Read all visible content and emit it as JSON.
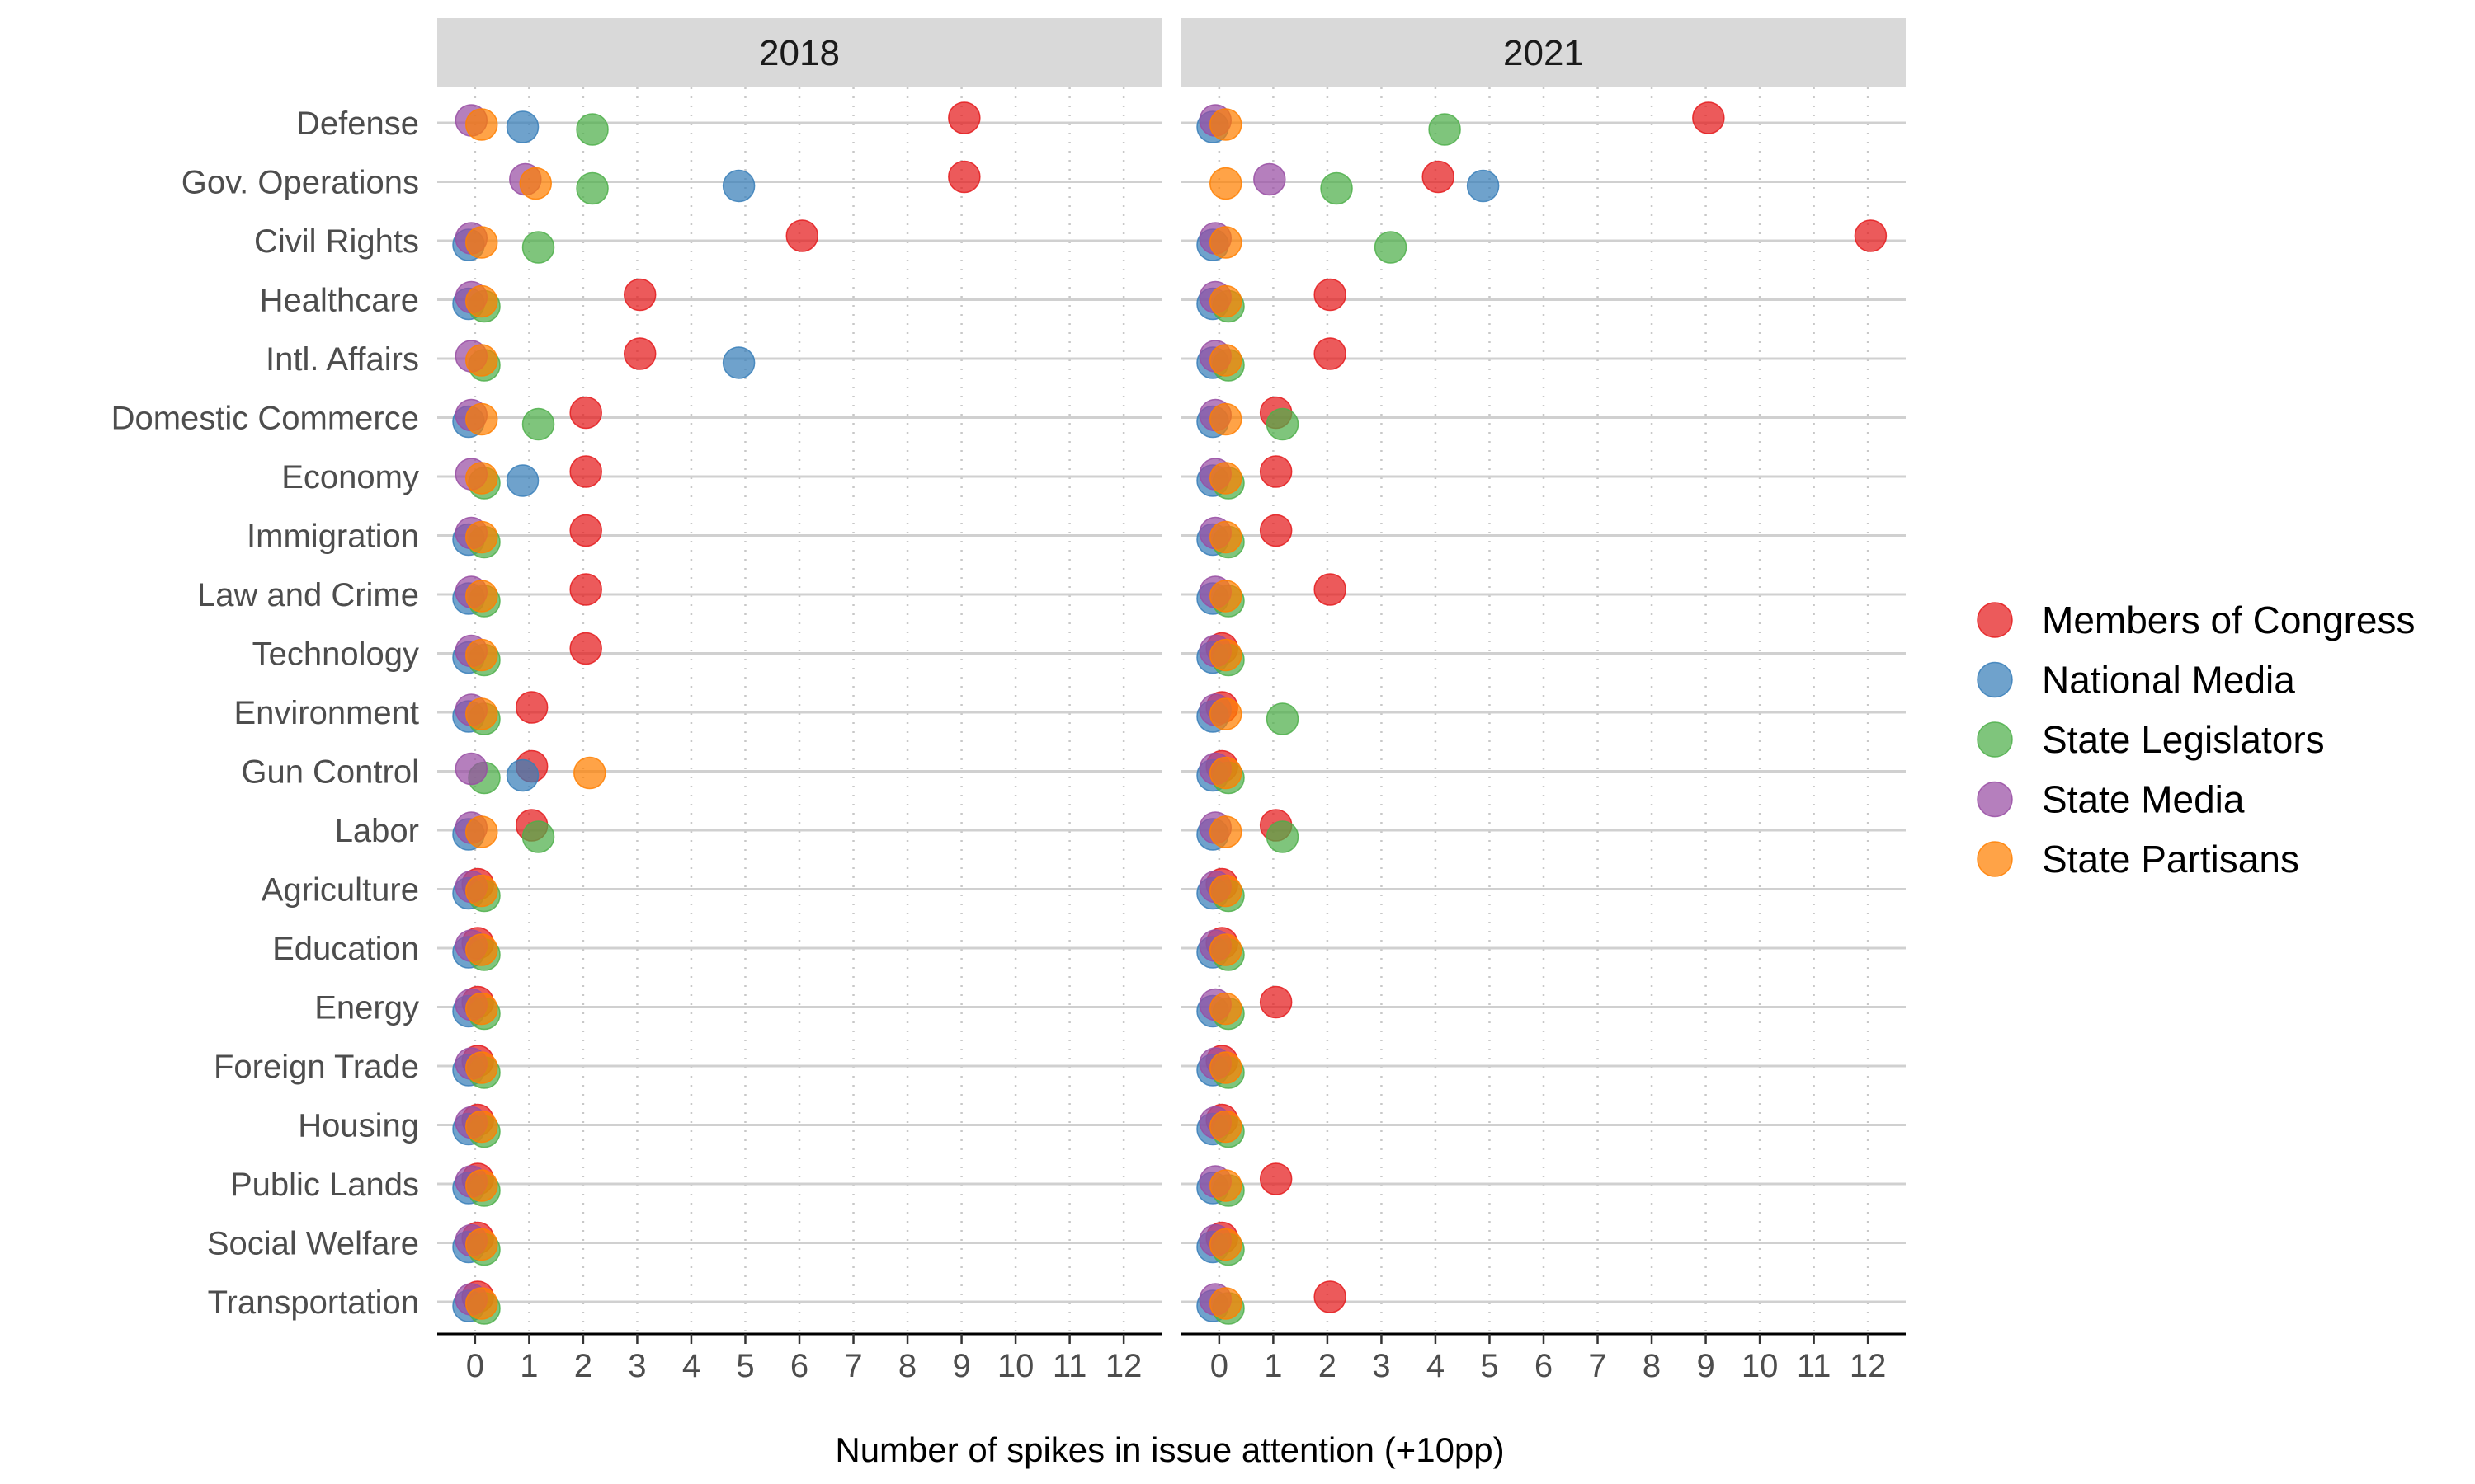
{
  "chart_data": {
    "type": "scatter",
    "xlabel": "Number of spikes in issue attention (+10pp)",
    "ylabel": "",
    "xlim": [
      -0.7,
      12.7
    ],
    "xticks": [
      0,
      1,
      2,
      3,
      4,
      5,
      6,
      7,
      8,
      9,
      10,
      11,
      12
    ],
    "grid": true,
    "legend_position": "right",
    "categories": [
      "Defense",
      "Gov. Operations",
      "Civil Rights",
      "Healthcare",
      "Intl. Affairs",
      "Domestic Commerce",
      "Economy",
      "Immigration",
      "Law and Crime",
      "Technology",
      "Environment",
      "Gun Control",
      "Labor",
      "Agriculture",
      "Education",
      "Energy",
      "Foreign Trade",
      "Housing",
      "Public Lands",
      "Social Welfare",
      "Transportation"
    ],
    "series": [
      {
        "name": "Members of Congress",
        "color": "#E41A1C"
      },
      {
        "name": "National Media",
        "color": "#377EB8"
      },
      {
        "name": "State Legislators",
        "color": "#4DAF4A"
      },
      {
        "name": "State Media",
        "color": "#984EA3"
      },
      {
        "name": "State Partisans",
        "color": "#FF7F00"
      }
    ],
    "panels": [
      {
        "label": "2018",
        "values": {
          "Members of Congress": [
            9,
            9,
            6,
            3,
            3,
            2,
            2,
            2,
            2,
            2,
            1,
            1,
            1,
            0,
            0,
            0,
            0,
            0,
            0,
            0,
            0
          ],
          "National Media": [
            1,
            5,
            0,
            0,
            5,
            0,
            1,
            0,
            0,
            0,
            0,
            1,
            0,
            0,
            0,
            0,
            0,
            0,
            0,
            0,
            0
          ],
          "State Legislators": [
            2,
            2,
            1,
            0,
            0,
            1,
            0,
            0,
            0,
            0,
            0,
            0,
            1,
            0,
            0,
            0,
            0,
            0,
            0,
            0,
            0
          ],
          "State Media": [
            0,
            1,
            0,
            0,
            0,
            0,
            0,
            0,
            0,
            0,
            0,
            0,
            0,
            0,
            0,
            0,
            0,
            0,
            0,
            0,
            0
          ],
          "State Partisans": [
            0,
            1,
            0,
            0,
            0,
            0,
            0,
            0,
            0,
            0,
            0,
            2,
            0,
            0,
            0,
            0,
            0,
            0,
            0,
            0,
            0
          ]
        }
      },
      {
        "label": "2021",
        "values": {
          "Members of Congress": [
            9,
            4,
            12,
            2,
            2,
            1,
            1,
            1,
            2,
            0,
            0,
            0,
            1,
            0,
            0,
            1,
            0,
            0,
            1,
            0,
            2
          ],
          "National Media": [
            0,
            5,
            0,
            0,
            0,
            0,
            0,
            0,
            0,
            0,
            0,
            0,
            0,
            0,
            0,
            0,
            0,
            0,
            0,
            0,
            0
          ],
          "State Legislators": [
            4,
            2,
            3,
            0,
            0,
            1,
            0,
            0,
            0,
            0,
            1,
            0,
            1,
            0,
            0,
            0,
            0,
            0,
            0,
            0,
            0
          ],
          "State Media": [
            0,
            1,
            0,
            0,
            0,
            0,
            0,
            0,
            0,
            0,
            0,
            0,
            0,
            0,
            0,
            0,
            0,
            0,
            0,
            0,
            0
          ],
          "State Partisans": [
            0,
            0,
            0,
            0,
            0,
            0,
            0,
            0,
            0,
            0,
            0,
            0,
            0,
            0,
            0,
            0,
            0,
            0,
            0,
            0,
            0
          ]
        }
      }
    ]
  }
}
